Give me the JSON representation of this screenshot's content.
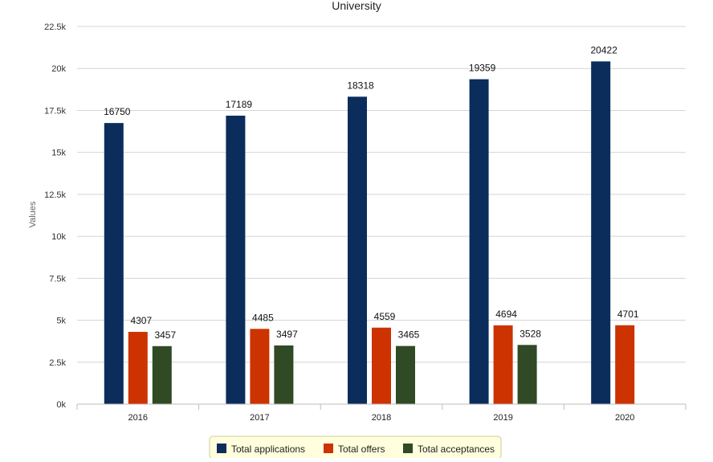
{
  "chart_data": {
    "type": "bar",
    "title": "University",
    "xlabel": "",
    "ylabel": "Values",
    "ylim": [
      0,
      22500
    ],
    "yticks": [
      "0k",
      "2.5k",
      "5k",
      "7.5k",
      "10k",
      "12.5k",
      "15k",
      "17.5k",
      "20k",
      "22.5k"
    ],
    "ytick_values": [
      0,
      2500,
      5000,
      7500,
      10000,
      12500,
      15000,
      17500,
      20000,
      22500
    ],
    "categories": [
      "2016",
      "2017",
      "2018",
      "2019",
      "2020"
    ],
    "grid": true,
    "legend_position": "bottom-center",
    "series": [
      {
        "name": "Total applications",
        "color": "#0b2d5c",
        "values": [
          16750,
          17189,
          18318,
          19359,
          20422
        ],
        "labels": [
          "16750",
          "17189",
          "18318",
          "19359",
          "20422"
        ]
      },
      {
        "name": "Total offers",
        "color": "#cc3300",
        "values": [
          4307,
          4485,
          4559,
          4694,
          4701
        ],
        "labels": [
          "4307",
          "4485",
          "4559",
          "4694",
          "4701"
        ]
      },
      {
        "name": "Total acceptances",
        "color": "#2f4a24",
        "values": [
          3457,
          3497,
          3465,
          3528,
          null
        ],
        "labels": [
          "3457",
          "3497",
          "3465",
          "3528",
          ""
        ]
      }
    ]
  }
}
